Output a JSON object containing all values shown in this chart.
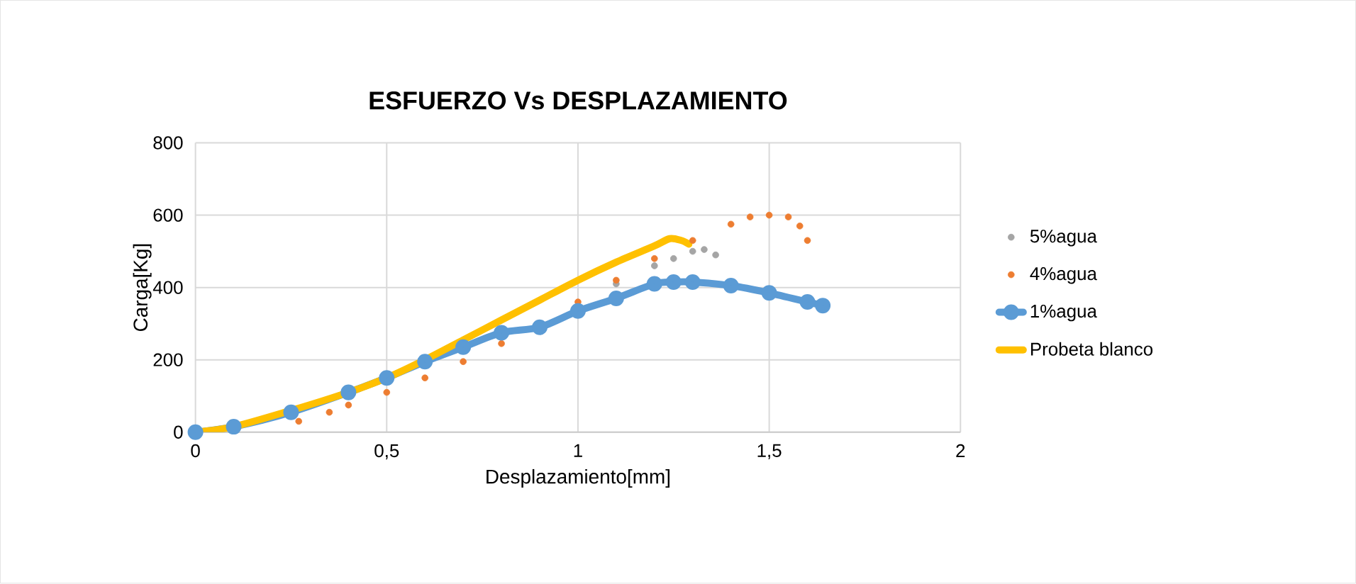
{
  "chart_data": {
    "type": "line",
    "title": "ESFUERZO Vs DESPLAZAMIENTO",
    "xlabel": "Desplazamiento[mm]",
    "ylabel": "Carga[Kg]",
    "xlim": [
      0,
      2
    ],
    "xticks": [
      0,
      {
        "value": 0.5,
        "label": "0,5"
      },
      1,
      {
        "value": 1.5,
        "label": "1,5"
      },
      2
    ],
    "ylim": [
      0,
      800
    ],
    "yticks": [
      0,
      200,
      400,
      600,
      800
    ],
    "grid": true,
    "legend": "right",
    "series": [
      {
        "name": "5%agua",
        "type": "scatter",
        "marker": "circle",
        "color": "#a5a5a5",
        "x": [
          1.1,
          1.2,
          1.25,
          1.3,
          1.33,
          1.36
        ],
        "values": [
          410,
          460,
          480,
          500,
          505,
          490
        ]
      },
      {
        "name": "4%agua",
        "type": "scatter",
        "marker": "circle",
        "color": "#ed7d31",
        "x": [
          0.27,
          0.35,
          0.4,
          0.5,
          0.6,
          0.7,
          0.8,
          1.0,
          1.1,
          1.2,
          1.3,
          1.4,
          1.45,
          1.5,
          1.55,
          1.58,
          1.6
        ],
        "values": [
          30,
          55,
          75,
          110,
          150,
          195,
          245,
          360,
          420,
          480,
          530,
          575,
          595,
          600,
          595,
          570,
          530
        ]
      },
      {
        "name": "1%agua",
        "marker": "circle",
        "color": "#5b9bd5",
        "x": [
          0,
          0.1,
          0.25,
          0.4,
          0.5,
          0.6,
          0.7,
          0.8,
          0.9,
          1.0,
          1.1,
          1.2,
          1.25,
          1.3,
          1.4,
          1.5,
          1.6,
          1.64
        ],
        "values": [
          0,
          15,
          55,
          110,
          150,
          195,
          235,
          275,
          290,
          335,
          370,
          410,
          415,
          415,
          405,
          385,
          360,
          350
        ]
      },
      {
        "name": "Probeta blanco",
        "marker": "none",
        "color": "#ffc000",
        "x": [
          0,
          0.1,
          0.25,
          0.4,
          0.5,
          0.6,
          0.7,
          0.8,
          0.9,
          1.0,
          1.1,
          1.2,
          1.24,
          1.27,
          1.29
        ],
        "values": [
          0,
          15,
          60,
          110,
          150,
          200,
          255,
          310,
          365,
          420,
          470,
          515,
          535,
          530,
          520
        ]
      }
    ]
  }
}
